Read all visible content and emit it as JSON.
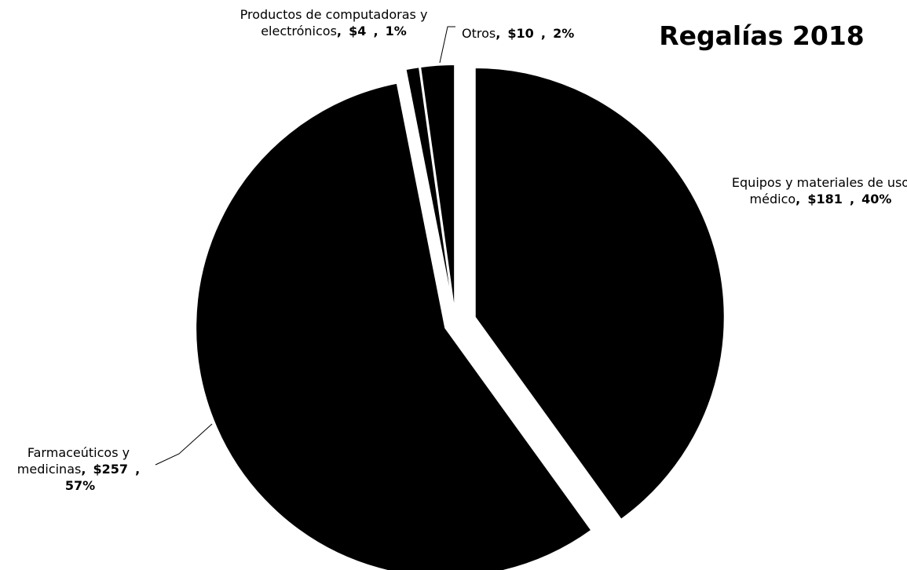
{
  "chart_data": {
    "type": "pie",
    "title": "Regalías 2018",
    "categories": [
      "Equipos y materiales de uso médico",
      "Farmaceúticos y medicinas",
      "Productos de computadoras y electrónicos",
      "Otros"
    ],
    "values": [
      181,
      257,
      4,
      10
    ],
    "value_labels": [
      "$181",
      "$257",
      "$4",
      "$10"
    ],
    "percents": [
      40,
      57,
      1,
      2
    ],
    "percent_labels": [
      "40%",
      "57%",
      "1%",
      "2%"
    ],
    "label_separator": ",",
    "color": "#000000"
  }
}
